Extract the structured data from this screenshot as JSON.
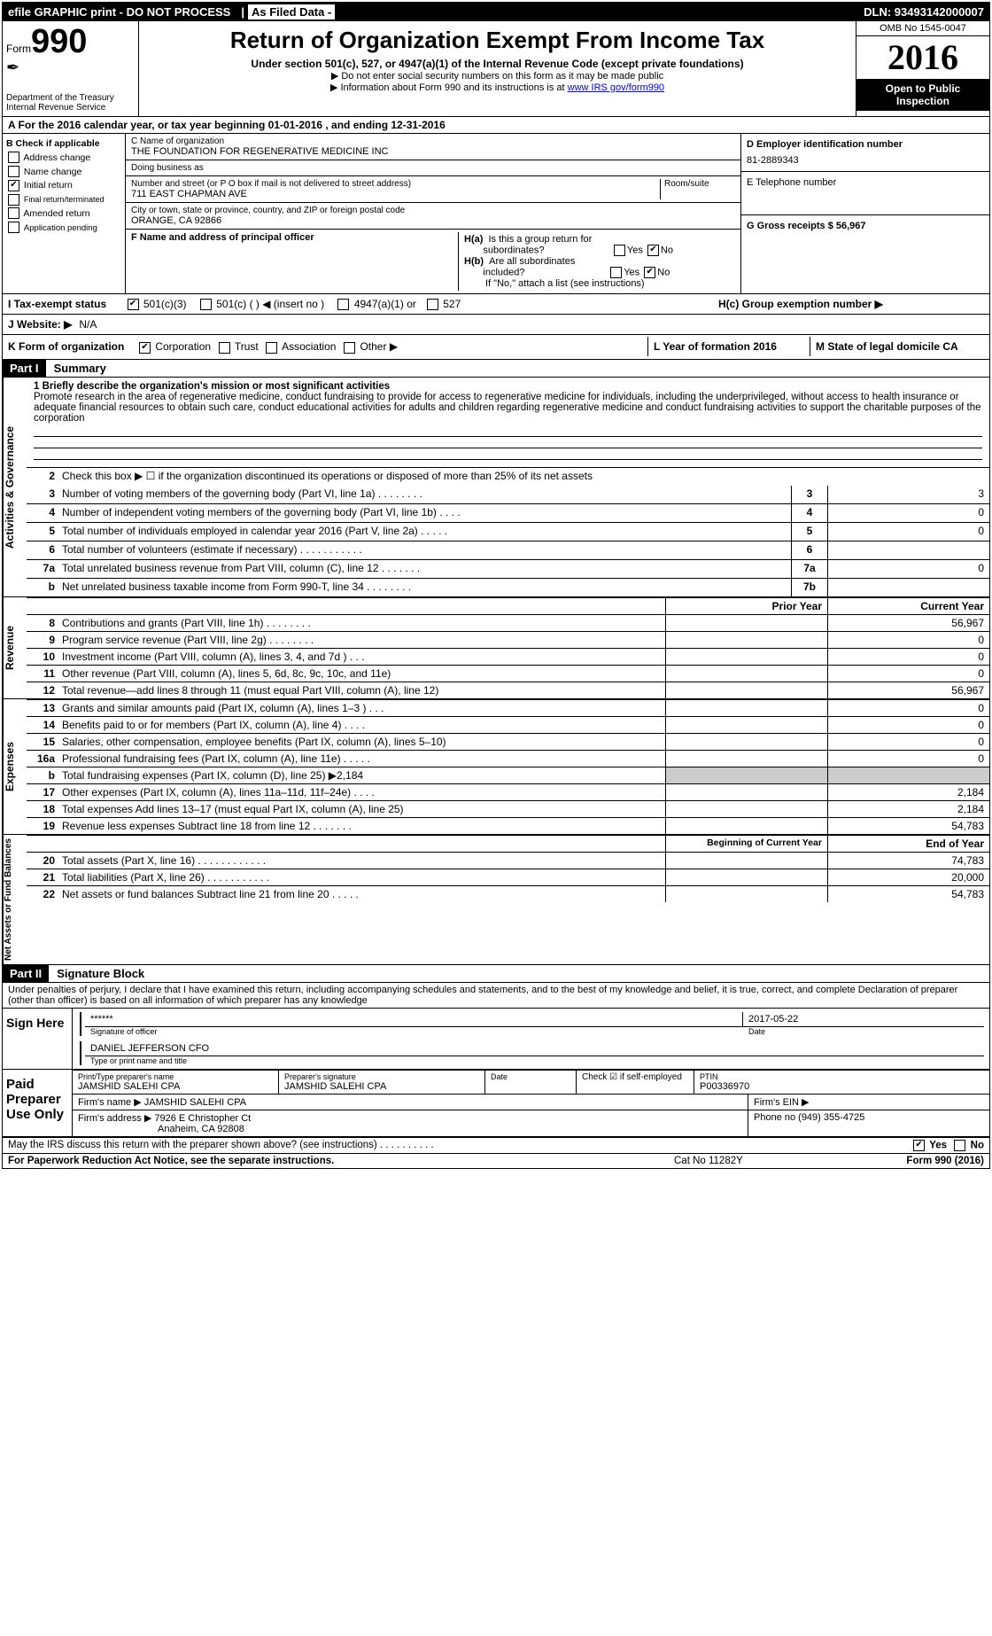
{
  "topbar": {
    "efile": "efile GRAPHIC print - DO NOT PROCESS",
    "asfiled_label": "As Filed Data -",
    "dln": "DLN: 93493142000007"
  },
  "header": {
    "form_label": "Form",
    "form_number": "990",
    "dept1": "Department of the Treasury",
    "dept2": "Internal Revenue Service",
    "title": "Return of Organization Exempt From Income Tax",
    "subtitle": "Under section 501(c), 527, or 4947(a)(1) of the Internal Revenue Code (except private foundations)",
    "note1": "▶ Do not enter social security numbers on this form as it may be made public",
    "note2": "▶ Information about Form 990 and its instructions is at ",
    "note2_link": "www IRS gov/form990",
    "omb": "OMB No 1545-0047",
    "year": "2016",
    "open_public": "Open to Public Inspection"
  },
  "line_a": "A  For the 2016 calendar year, or tax year beginning 01-01-2016   , and ending 12-31-2016",
  "section_b": {
    "header": "B Check if applicable",
    "address_change": "Address change",
    "name_change": "Name change",
    "initial_return": "Initial return",
    "final": "Final return/terminated",
    "amended": "Amended return",
    "app_pending": "Application pending"
  },
  "section_c": {
    "name_label": "C Name of organization",
    "name": "THE FOUNDATION FOR REGENERATIVE MEDICINE INC",
    "dba_label": "Doing business as",
    "dba": "",
    "street_label": "Number and street (or P O  box if mail is not delivered to street address)",
    "room_label": "Room/suite",
    "street": "711 EAST CHAPMAN AVE",
    "city_label": "City or town, state or province, country, and ZIP or foreign postal code",
    "city": "ORANGE, CA  92866",
    "f_label": "F  Name and address of principal officer",
    "f_value": ""
  },
  "section_d": {
    "label": "D Employer identification number",
    "value": "81-2889343",
    "e_label": "E Telephone number",
    "e_value": "",
    "g_label": "G Gross receipts $ 56,967"
  },
  "section_h": {
    "ha": "H(a)  Is this a group return for subordinates?",
    "hb": "H(b)  Are all subordinates included?",
    "hb_note": "If \"No,\" attach a list  (see instructions)",
    "hc": "H(c)  Group exemption number ▶",
    "yes": "Yes",
    "no": "No"
  },
  "row_i": {
    "label": "I  Tax-exempt status",
    "opt1": "501(c)(3)",
    "opt2": "501(c) (   ) ◀ (insert no )",
    "opt3": "4947(a)(1) or",
    "opt4": "527"
  },
  "row_j": {
    "label": "J  Website: ▶",
    "value": "N/A"
  },
  "row_k": {
    "label": "K Form of organization",
    "corp": "Corporation",
    "trust": "Trust",
    "assoc": "Association",
    "other": "Other ▶"
  },
  "row_l": {
    "label": "L Year of formation  2016"
  },
  "row_m": {
    "label": "M State of legal domicile  CA"
  },
  "part1": {
    "header": "Part I",
    "title": "Summary",
    "q1_label": "1 Briefly describe the organization's mission or most significant activities",
    "q1_text": "Promote research in the area of regenerative medicine, conduct fundraising to provide for access to regenerative medicine for individuals, including the underprivileged, without access to health insurance or adequate financial resources to obtain such care, conduct educational activities for adults and children regarding regenerative medicine and conduct fundraising activities to support the charitable purposes of the corporation",
    "q2": "Check this box ▶ ☐ if the organization discontinued its operations or disposed of more than 25% of its net assets",
    "rows_small": [
      {
        "n": "3",
        "d": "Number of voting members of the governing body (Part VI, line 1a)  .   .   .   .   .   .   .   .",
        "b": "3",
        "v": "3"
      },
      {
        "n": "4",
        "d": "Number of independent voting members of the governing body (Part VI, line 1b)   .   .   .   .",
        "b": "4",
        "v": "0"
      },
      {
        "n": "5",
        "d": "Total number of individuals employed in calendar year 2016 (Part V, line 2a)  .   .   .   .   .",
        "b": "5",
        "v": "0"
      },
      {
        "n": "6",
        "d": "Total number of volunteers (estimate if necessary)  .   .   .   .   .   .   .   .   .   .   .",
        "b": "6",
        "v": ""
      },
      {
        "n": "7a",
        "d": "Total unrelated business revenue from Part VIII, column (C), line 12   .   .   .   .   .   .   .",
        "b": "7a",
        "v": "0"
      },
      {
        "n": "b",
        "d": "Net unrelated business taxable income from Form 990-T, line 34  .   .   .   .   .   .   .   .",
        "b": "7b",
        "v": ""
      }
    ],
    "prior_label": "Prior Year",
    "current_label": "Current Year",
    "revenue_rows": [
      {
        "n": "8",
        "d": "Contributions and grants (Part VIII, line 1h)   .   .   .   .   .   .   .   .",
        "p": "",
        "c": "56,967"
      },
      {
        "n": "9",
        "d": "Program service revenue (Part VIII, line 2g)  .   .   .   .   .   .   .   .",
        "p": "",
        "c": "0"
      },
      {
        "n": "10",
        "d": "Investment income (Part VIII, column (A), lines 3, 4, and 7d )  .   .   .",
        "p": "",
        "c": "0"
      },
      {
        "n": "11",
        "d": "Other revenue (Part VIII, column (A), lines 5, 6d, 8c, 9c, 10c, and 11e)",
        "p": "",
        "c": "0"
      },
      {
        "n": "12",
        "d": "Total revenue—add lines 8 through 11 (must equal Part VIII, column (A), line 12)",
        "p": "",
        "c": "56,967"
      }
    ],
    "expense_rows": [
      {
        "n": "13",
        "d": "Grants and similar amounts paid (Part IX, column (A), lines 1–3 )  .   .   .",
        "p": "",
        "c": "0"
      },
      {
        "n": "14",
        "d": "Benefits paid to or for members (Part IX, column (A), line 4)  .   .   .   .",
        "p": "",
        "c": "0"
      },
      {
        "n": "15",
        "d": "Salaries, other compensation, employee benefits (Part IX, column (A), lines 5–10)",
        "p": "",
        "c": "0"
      },
      {
        "n": "16a",
        "d": "Professional fundraising fees (Part IX, column (A), line 11e)  .   .   .   .   .",
        "p": "",
        "c": "0"
      },
      {
        "n": "b",
        "d": "Total fundraising expenses (Part IX, column (D), line 25) ▶2,184",
        "p": "—",
        "c": "—"
      },
      {
        "n": "17",
        "d": "Other expenses (Part IX, column (A), lines 11a–11d, 11f–24e)  .   .   .   .",
        "p": "",
        "c": "2,184"
      },
      {
        "n": "18",
        "d": "Total expenses  Add lines 13–17 (must equal Part IX, column (A), line 25)",
        "p": "",
        "c": "2,184"
      },
      {
        "n": "19",
        "d": "Revenue less expenses  Subtract line 18 from line 12  .   .   .   .   .   .   .",
        "p": "",
        "c": "54,783"
      }
    ],
    "begin_label": "Beginning of Current Year",
    "end_label": "End of Year",
    "balance_rows": [
      {
        "n": "20",
        "d": "Total assets (Part X, line 16)  .   .   .   .   .   .   .   .   .   .   .   .",
        "p": "",
        "c": "74,783"
      },
      {
        "n": "21",
        "d": "Total liabilities (Part X, line 26)  .   .   .   .   .   .   .   .   .   .   .",
        "p": "",
        "c": "20,000"
      },
      {
        "n": "22",
        "d": "Net assets or fund balances  Subtract line 21 from line 20  .   .   .   .   .",
        "p": "",
        "c": "54,783"
      }
    ],
    "side_gov": "Activities & Governance",
    "side_rev": "Revenue",
    "side_exp": "Expenses",
    "side_bal": "Net Assets or Fund Balances"
  },
  "part2": {
    "header": "Part II",
    "title": "Signature Block",
    "declaration": "Under penalties of perjury, I declare that I have examined this return, including accompanying schedules and statements, and to the best of my knowledge and belief, it is true, correct, and complete  Declaration of preparer (other than officer) is based on all information of which preparer has any knowledge",
    "sign_here": "Sign Here",
    "stars": "******",
    "sig_officer_label": "Signature of officer",
    "date_val": "2017-05-22",
    "date_label": "Date",
    "officer_name": "DANIEL JEFFERSON CFO",
    "name_title_label": "Type or print name and title",
    "paid": "Paid Preparer Use Only",
    "prep_name_label": "Print/Type preparer's name",
    "prep_name": "JAMSHID SALEHI CPA",
    "prep_sig_label": "Preparer's signature",
    "prep_sig": "JAMSHID SALEHI CPA",
    "prep_date_label": "Date",
    "check_self": "Check ☑ if self-employed",
    "ptin_label": "PTIN",
    "ptin": "P00336970",
    "firm_name_label": "Firm's name    ▶",
    "firm_name": "JAMSHID SALEHI CPA",
    "firm_ein_label": "Firm's EIN ▶",
    "firm_addr_label": "Firm's address ▶",
    "firm_addr1": "7926 E Christopher Ct",
    "firm_addr2": "Anaheim, CA  92808",
    "phone_label": "Phone no  (949) 355-4725",
    "discuss": "May the IRS discuss this return with the preparer shown above? (see instructions)   .   .   .   .   .   .   .   .   .   .",
    "yes": "Yes",
    "no": "No"
  },
  "footer": {
    "paperwork": "For Paperwork Reduction Act Notice, see the separate instructions.",
    "cat": "Cat No  11282Y",
    "form": "Form 990 (2016)"
  }
}
